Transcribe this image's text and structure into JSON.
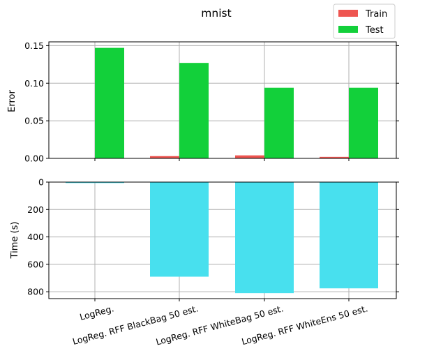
{
  "title": "mnist",
  "legend": {
    "placement": "top-right"
  },
  "colors": {
    "train": "#ee5550",
    "test": "#12d03a",
    "time": "#48e0ee"
  },
  "chart_data": [
    {
      "type": "bar",
      "categories": [
        "LogReg.",
        "LogReg. RFF BlackBag 50 est.",
        "LogReg. RFF WhiteBag 50 est.",
        "LogReg. RFF WhiteEns 50 est."
      ],
      "series": [
        {
          "name": "Train",
          "values": [
            0.0,
            0.003,
            0.004,
            0.002
          ]
        },
        {
          "name": "Test",
          "values": [
            0.147,
            0.127,
            0.094,
            0.094
          ]
        }
      ],
      "xlabel": "",
      "ylabel": "Error",
      "ylim": [
        0,
        0.155
      ],
      "yticks": [
        0.0,
        0.05,
        0.1,
        0.15
      ],
      "ytick_labels": [
        "0.00",
        "0.05",
        "0.10",
        "0.15"
      ],
      "grid": true
    },
    {
      "type": "bar",
      "categories": [
        "LogReg.",
        "LogReg. RFF BlackBag 50 est.",
        "LogReg. RFF WhiteBag 50 est.",
        "LogReg. RFF WhiteEns 50 est."
      ],
      "series": [
        {
          "values": [
            7,
            690,
            810,
            775
          ]
        }
      ],
      "xlabel": "",
      "ylabel": "Time (s)",
      "ylim": [
        850,
        0
      ],
      "inverted": true,
      "yticks": [
        0,
        200,
        400,
        600,
        800
      ],
      "ytick_labels": [
        "0",
        "200",
        "400",
        "600",
        "800"
      ],
      "grid": true
    }
  ]
}
